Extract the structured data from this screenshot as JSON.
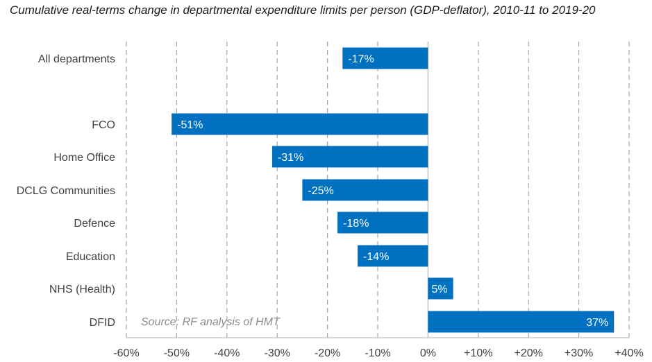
{
  "chart_data": {
    "type": "bar",
    "orientation": "horizontal",
    "title": "Cumulative real-terms change in departmental expenditure limits per person (GDP-deflator), 2010-11 to 2019-20",
    "xlabel": "",
    "ylabel": "",
    "xlim": [
      -60,
      40
    ],
    "ticks": [
      -60,
      -50,
      -40,
      -30,
      -20,
      -10,
      0,
      10,
      20,
      30,
      40
    ],
    "tick_labels": [
      "-60%",
      "-50%",
      "-40%",
      "-30%",
      "-20%",
      "-10%",
      "0%",
      "+10%",
      "+20%",
      "+30%",
      "+40%"
    ],
    "grid": "vertical dashed",
    "bar_color": "#0070C0",
    "categories": [
      "All departments",
      "FCO",
      "Home Office",
      "DCLG Communities",
      "Defence",
      "Education",
      "NHS (Health)",
      "DFID"
    ],
    "values": [
      -17,
      -51,
      -31,
      -25,
      -18,
      -14,
      5,
      37
    ],
    "value_labels": [
      "-17%",
      "-51%",
      "-31%",
      "-25%",
      "-18%",
      "-14%",
      "5%",
      "37%"
    ],
    "source_note": "Source: RF analysis of HMT"
  }
}
